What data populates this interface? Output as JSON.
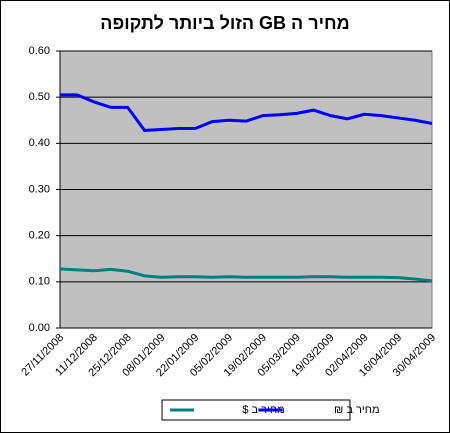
{
  "chart_data": {
    "type": "line",
    "title": "מחיר ה GB הזול ביותר לתקופה",
    "categories": [
      "27/11/2008",
      null,
      "11/12/2008",
      null,
      "25/12/2008",
      null,
      "08/01/2009",
      null,
      "22/01/2009",
      null,
      "05/02/2009",
      null,
      "19/02/2009",
      null,
      "05/03/2009",
      null,
      "19/03/2009",
      null,
      "02/04/2009",
      null,
      "16/04/2009",
      null,
      "30/04/2009"
    ],
    "series": [
      {
        "name": "מחיר ב $",
        "color": "#008080",
        "values": [
          0.128,
          0.126,
          0.124,
          0.127,
          0.123,
          0.113,
          0.11,
          0.111,
          0.111,
          0.11,
          0.111,
          0.11,
          0.11,
          0.11,
          0.11,
          0.111,
          0.111,
          0.11,
          0.11,
          0.11,
          0.109,
          0.106,
          0.102
        ]
      },
      {
        "name": "מחיר ב ₪",
        "color": "#0000ff",
        "values": [
          0.505,
          0.505,
          0.49,
          0.478,
          0.478,
          0.428,
          0.43,
          0.432,
          0.432,
          0.447,
          0.45,
          0.448,
          0.46,
          0.462,
          0.465,
          0.472,
          0.46,
          0.453,
          0.463,
          0.46,
          0.455,
          0.45,
          0.443
        ]
      }
    ],
    "ylim": [
      0,
      0.6
    ],
    "yticks": [
      {
        "value": 0,
        "label": "0.00"
      },
      {
        "value": 0.1,
        "label": "0.10"
      },
      {
        "value": 0.2,
        "label": "0.20"
      },
      {
        "value": 0.3,
        "label": "0.30"
      },
      {
        "value": 0.4,
        "label": "0.40"
      },
      {
        "value": 0.5,
        "label": "0.50"
      },
      {
        "value": 0.6,
        "label": "0.60"
      }
    ],
    "grid": true,
    "legend": "bottom"
  }
}
